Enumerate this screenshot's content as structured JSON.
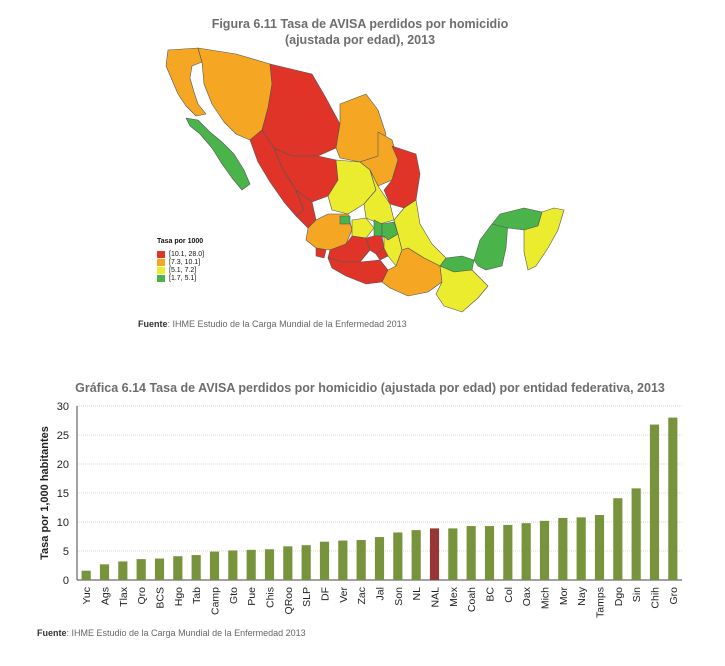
{
  "figure": {
    "title_line1": "Figura 6.11 Tasa de AVISA perdidos por homicidio",
    "title_line2": "(ajustada por edad), 2013",
    "legend_title": "Tasa por 1000",
    "legend": [
      {
        "label": "[10.1, 28.0]",
        "color": "#e03428"
      },
      {
        "label": "[7.3, 10.1]",
        "color": "#f5a623"
      },
      {
        "label": "[5.1, 7.2]",
        "color": "#ecec2e"
      },
      {
        "label": "[1.7, 5.1]",
        "color": "#4ab44a"
      }
    ],
    "source_label": "Fuente",
    "source_text": ": IHME Estudio de la Carga Mundial de la Enfermedad 2013"
  },
  "chart": {
    "title": "Gráfica 6.14 Tasa de AVISA perdidos por homicidio (ajustada por edad) por entidad federativa, 2013",
    "source_label": "Fuente",
    "source_text": ": IHME Estudio de la Carga Mundial de la Enfermedad 2013"
  },
  "chart_data": {
    "type": "bar",
    "ylabel": "Tasa por 1,000 habitantes",
    "xlabel": "",
    "ylim": [
      0,
      30
    ],
    "yticks": [
      0,
      5,
      10,
      15,
      20,
      25,
      30
    ],
    "grid": true,
    "color": "#77933c",
    "highlight_color": "#953735",
    "highlight": "NAL",
    "categories": [
      "Yuc",
      "Ags",
      "Tlax",
      "Qro",
      "BCS",
      "Hgo",
      "Tab",
      "Camp",
      "Gto",
      "Pue",
      "Chis",
      "QRoo",
      "SLP",
      "DF",
      "Ver",
      "Zac",
      "Jal",
      "Son",
      "NL",
      "NAL",
      "Mex",
      "Coah",
      "BC",
      "Col",
      "Oax",
      "Mich",
      "Mor",
      "Nay",
      "Tamps",
      "Dgo",
      "Sin",
      "Chih",
      "Gro"
    ],
    "values": [
      1.6,
      2.7,
      3.2,
      3.6,
      3.7,
      4.1,
      4.3,
      4.9,
      5.1,
      5.2,
      5.3,
      5.8,
      6.0,
      6.6,
      6.8,
      6.9,
      7.4,
      8.2,
      8.6,
      8.9,
      8.9,
      9.3,
      9.3,
      9.5,
      9.8,
      10.2,
      10.7,
      10.8,
      11.2,
      14.1,
      15.8,
      26.8,
      28.0
    ]
  }
}
